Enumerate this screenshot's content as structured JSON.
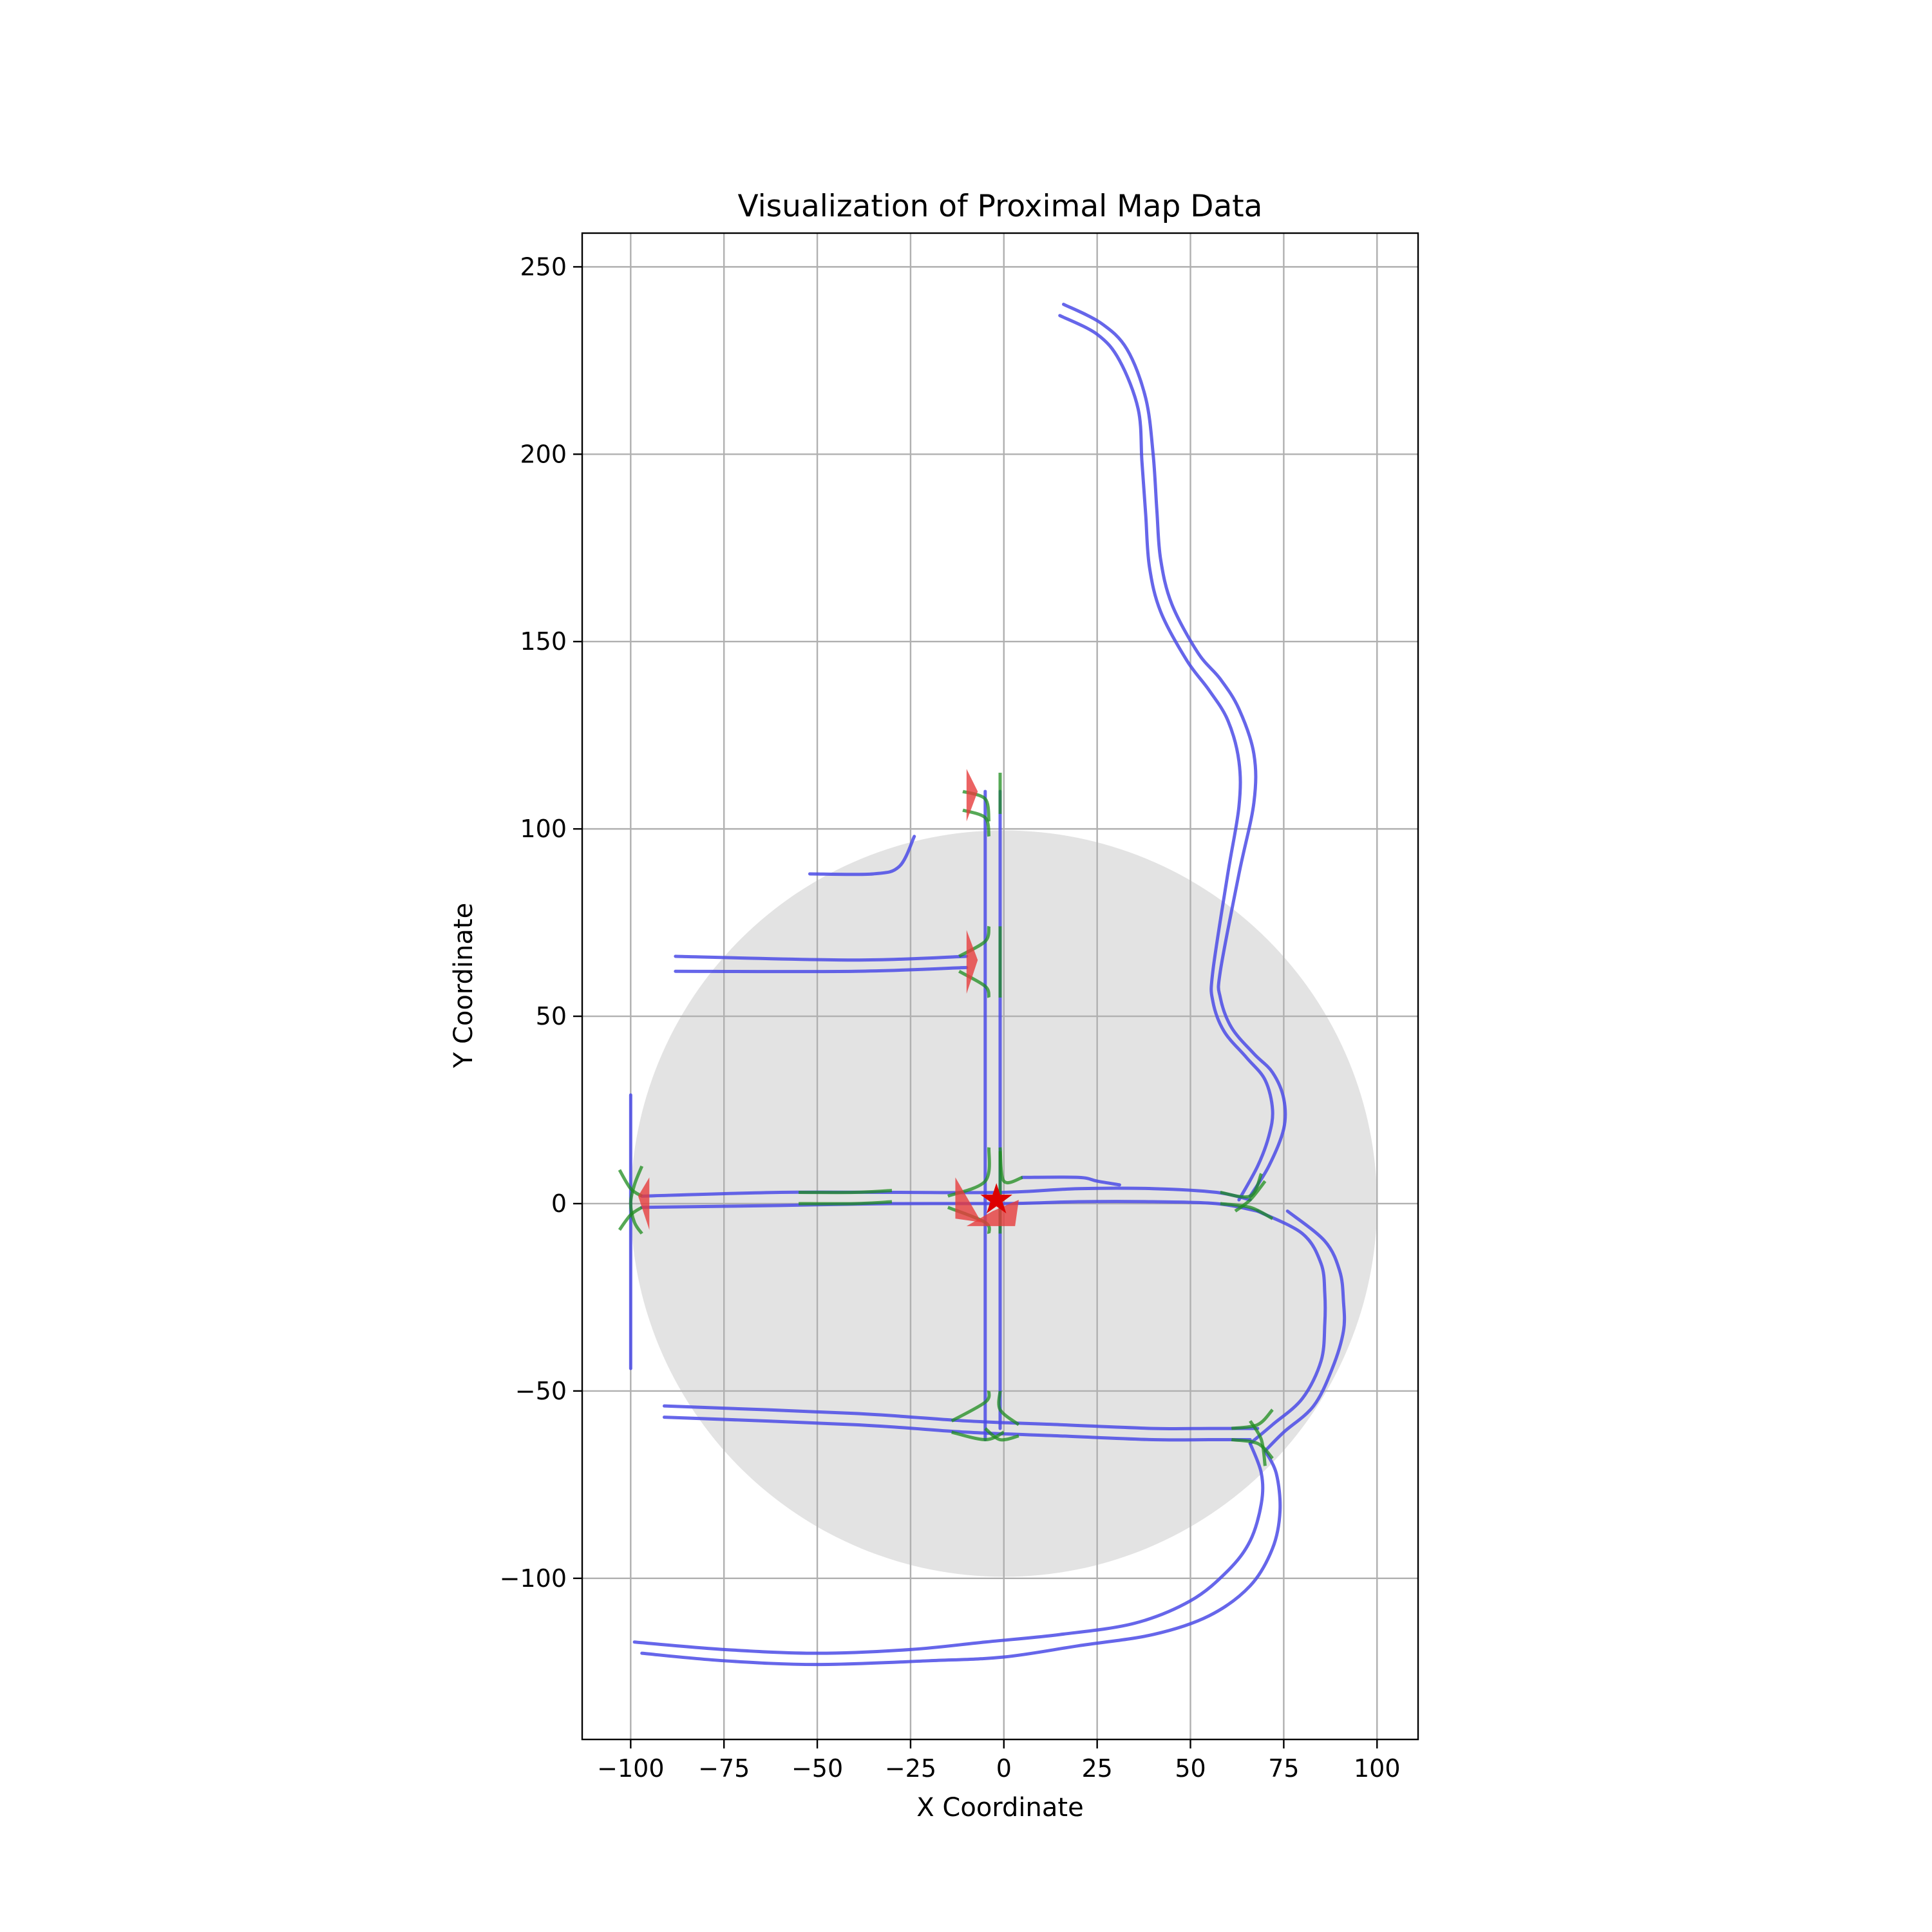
{
  "chart_data": {
    "type": "line",
    "title": "Visualization of Proximal Map Data",
    "xlabel": "X Coordinate",
    "ylabel": "Y Coordinate",
    "xlim": [
      -113,
      111
    ],
    "ylim": [
      -143,
      259
    ],
    "xticks": [
      -100,
      -75,
      -50,
      -25,
      0,
      25,
      50,
      75,
      100
    ],
    "yticks": [
      -100,
      -50,
      0,
      50,
      100,
      150,
      200,
      250
    ],
    "xtick_labels": [
      "−100",
      "−75",
      "−50",
      "−25",
      "0",
      "25",
      "50",
      "75",
      "100"
    ],
    "ytick_labels": [
      "−100",
      "−50",
      "0",
      "50",
      "100",
      "150",
      "200",
      "250"
    ],
    "grid": true,
    "colors": {
      "lane": "#4b4be6",
      "connector": "#1e8c1e",
      "marker": "#e63c3c",
      "circle": "#e3e3e3",
      "ego": "#dd0000"
    },
    "proximity_circle": {
      "center": [
        0,
        0
      ],
      "radius": 100
    },
    "ego_marker": {
      "x": -2,
      "y": 1
    },
    "lanes": [
      {
        "name": "north-curve-outer",
        "points": [
          [
            16,
            240
          ],
          [
            26,
            235
          ],
          [
            33,
            228
          ],
          [
            38,
            215
          ],
          [
            40,
            200
          ],
          [
            41,
            185
          ],
          [
            42,
            172
          ],
          [
            45,
            160
          ],
          [
            52,
            147
          ],
          [
            58,
            140
          ],
          [
            63,
            132
          ],
          [
            67,
            120
          ],
          [
            67,
            107
          ],
          [
            63,
            88
          ],
          [
            58,
            62
          ],
          [
            58,
            55
          ],
          [
            61,
            47
          ],
          [
            67,
            40
          ],
          [
            72,
            35
          ],
          [
            75,
            28
          ],
          [
            75,
            20
          ],
          [
            71,
            10
          ],
          [
            66,
            2
          ]
        ]
      },
      {
        "name": "north-curve-inner",
        "points": [
          [
            15,
            237
          ],
          [
            25,
            232
          ],
          [
            31,
            225
          ],
          [
            36,
            212
          ],
          [
            37,
            198
          ],
          [
            38,
            184
          ],
          [
            39,
            170
          ],
          [
            42,
            158
          ],
          [
            49,
            145
          ],
          [
            55,
            137
          ],
          [
            60,
            129
          ],
          [
            63,
            118
          ],
          [
            63,
            106
          ],
          [
            60,
            88
          ],
          [
            56,
            62
          ],
          [
            56,
            54
          ],
          [
            59,
            46
          ],
          [
            65,
            39
          ],
          [
            70,
            33
          ],
          [
            72,
            25
          ],
          [
            71,
            18
          ],
          [
            68,
            10
          ],
          [
            63,
            1
          ]
        ]
      },
      {
        "name": "east-loop-outer",
        "points": [
          [
            68,
            -2
          ],
          [
            80,
            -8
          ],
          [
            85,
            -16
          ],
          [
            86,
            -24
          ],
          [
            86,
            -32
          ],
          [
            85,
            -42
          ],
          [
            80,
            -52
          ],
          [
            72,
            -59
          ],
          [
            66,
            -64
          ]
        ]
      },
      {
        "name": "east-loop-inner",
        "points": [
          [
            76,
            -2
          ],
          [
            86,
            -10
          ],
          [
            90,
            -18
          ],
          [
            91,
            -26
          ],
          [
            91,
            -34
          ],
          [
            88,
            -44
          ],
          [
            83,
            -54
          ],
          [
            75,
            -61
          ],
          [
            70,
            -66
          ]
        ]
      },
      {
        "name": "south-road-upper",
        "points": [
          [
            70,
            -66
          ],
          [
            73,
            -72
          ],
          [
            74,
            -82
          ],
          [
            72,
            -92
          ],
          [
            66,
            -102
          ],
          [
            55,
            -110
          ],
          [
            40,
            -115
          ],
          [
            20,
            -118
          ],
          [
            0,
            -121
          ],
          [
            -20,
            -122
          ],
          [
            -50,
            -123
          ],
          [
            -75,
            -122
          ],
          [
            -97,
            -120
          ]
        ]
      },
      {
        "name": "south-road-lower",
        "points": [
          [
            66,
            -64
          ],
          [
            69,
            -72
          ],
          [
            69,
            -80
          ],
          [
            66,
            -90
          ],
          [
            60,
            -98
          ],
          [
            50,
            -106
          ],
          [
            35,
            -112
          ],
          [
            15,
            -115
          ],
          [
            -5,
            -117
          ],
          [
            -25,
            -119
          ],
          [
            -50,
            -120
          ],
          [
            -75,
            -119
          ],
          [
            -99,
            -117
          ]
        ]
      },
      {
        "name": "main-east-west-upper",
        "points": [
          [
            -97,
            2
          ],
          [
            -60,
            3
          ],
          [
            -30,
            3
          ],
          [
            0,
            3
          ],
          [
            20,
            4
          ],
          [
            40,
            4
          ],
          [
            57,
            3
          ],
          [
            66,
            1
          ]
        ]
      },
      {
        "name": "main-east-west-lower",
        "points": [
          [
            -97,
            -1
          ],
          [
            -60,
            -0.5
          ],
          [
            -30,
            0
          ],
          [
            0,
            0
          ],
          [
            20,
            0.5
          ],
          [
            40,
            0.5
          ],
          [
            57,
            0
          ],
          [
            68,
            -2
          ]
        ]
      },
      {
        "name": "vertical-road-left",
        "points": [
          [
            -5,
            110
          ],
          [
            -5,
            90
          ],
          [
            -5,
            66
          ],
          [
            -5,
            40
          ],
          [
            -5,
            10
          ],
          [
            -5,
            -20
          ],
          [
            -5,
            -50
          ],
          [
            -5,
            -63
          ]
        ]
      },
      {
        "name": "vertical-road-right",
        "points": [
          [
            -1,
            110
          ],
          [
            -1,
            90
          ],
          [
            -1,
            66
          ],
          [
            -1,
            40
          ],
          [
            -1,
            10
          ],
          [
            -1,
            -20
          ],
          [
            -1,
            -50
          ],
          [
            -1,
            -60
          ]
        ]
      },
      {
        "name": "west-branch-upper",
        "points": [
          [
            -88,
            66
          ],
          [
            -40,
            65
          ],
          [
            -10,
            66
          ]
        ]
      },
      {
        "name": "west-branch-lower",
        "points": [
          [
            -88,
            62
          ],
          [
            -40,
            62
          ],
          [
            -10,
            63
          ]
        ]
      },
      {
        "name": "short-stub-north",
        "points": [
          [
            -52,
            88
          ],
          [
            -35,
            88
          ],
          [
            -28,
            90
          ],
          [
            -24,
            98
          ]
        ]
      },
      {
        "name": "east-short-stub",
        "points": [
          [
            5,
            7
          ],
          [
            20,
            7
          ],
          [
            25,
            6
          ],
          [
            31,
            5
          ]
        ]
      },
      {
        "name": "far-west-vertical",
        "points": [
          [
            -100,
            29
          ],
          [
            -100,
            0
          ],
          [
            -100,
            -44
          ]
        ]
      },
      {
        "name": "south-branch-upper",
        "points": [
          [
            -91,
            -54
          ],
          [
            -40,
            -56
          ],
          [
            -10,
            -58
          ],
          [
            15,
            -59
          ],
          [
            40,
            -60
          ],
          [
            55,
            -60
          ],
          [
            68,
            -60
          ]
        ]
      },
      {
        "name": "south-branch-lower",
        "points": [
          [
            -91,
            -57
          ],
          [
            -40,
            -59
          ],
          [
            -10,
            -61
          ],
          [
            15,
            -62
          ],
          [
            40,
            -63
          ],
          [
            55,
            -63
          ],
          [
            66,
            -63
          ]
        ]
      }
    ],
    "connectors": [
      {
        "name": "conn-north-1",
        "points": [
          [
            -11,
            110
          ],
          [
            -5,
            108
          ],
          [
            -4,
            102
          ]
        ]
      },
      {
        "name": "conn-north-2",
        "points": [
          [
            -11,
            105
          ],
          [
            -5,
            103
          ],
          [
            -4,
            98
          ]
        ]
      },
      {
        "name": "conn-north-3",
        "points": [
          [
            -1,
            115
          ],
          [
            -1,
            104
          ]
        ]
      },
      {
        "name": "conn-west-junction-a",
        "points": [
          [
            -12,
            66
          ],
          [
            -5,
            70
          ],
          [
            -4,
            74
          ]
        ]
      },
      {
        "name": "conn-west-junction-b",
        "points": [
          [
            -12,
            62
          ],
          [
            -5,
            58
          ],
          [
            -4,
            55
          ]
        ]
      },
      {
        "name": "conn-west-junction-c",
        "points": [
          [
            -1,
            74
          ],
          [
            -1,
            55
          ]
        ]
      },
      {
        "name": "conn-center-a",
        "points": [
          [
            -15,
            2
          ],
          [
            -5,
            6
          ],
          [
            -4,
            15
          ]
        ]
      },
      {
        "name": "conn-center-b",
        "points": [
          [
            -15,
            -1
          ],
          [
            -5,
            -5
          ],
          [
            -4,
            -8
          ]
        ]
      },
      {
        "name": "conn-center-c",
        "points": [
          [
            5,
            7
          ],
          [
            0,
            6
          ],
          [
            -1,
            15
          ]
        ]
      },
      {
        "name": "conn-center-d",
        "points": [
          [
            -1,
            14
          ],
          [
            -1,
            -8
          ]
        ]
      },
      {
        "name": "conn-far-west-a",
        "points": [
          [
            -103,
            9
          ],
          [
            -100,
            4
          ],
          [
            -97,
            2
          ]
        ]
      },
      {
        "name": "conn-far-west-b",
        "points": [
          [
            -103,
            -7
          ],
          [
            -100,
            -3
          ],
          [
            -97,
            -1
          ]
        ]
      },
      {
        "name": "conn-far-west-c",
        "points": [
          [
            -97,
            10
          ],
          [
            -99,
            5
          ],
          [
            -100,
            0
          ],
          [
            -99,
            -5
          ],
          [
            -97,
            -8
          ]
        ]
      },
      {
        "name": "conn-main-west",
        "points": [
          [
            -55,
            3
          ],
          [
            -40,
            3
          ],
          [
            -30,
            3.5
          ]
        ]
      },
      {
        "name": "conn-main-west-2",
        "points": [
          [
            -55,
            0
          ],
          [
            -40,
            0
          ],
          [
            -30,
            0.5
          ]
        ]
      },
      {
        "name": "conn-east-junction-a",
        "points": [
          [
            58,
            3
          ],
          [
            66,
            2
          ],
          [
            69,
            8
          ]
        ]
      },
      {
        "name": "conn-east-junction-b",
        "points": [
          [
            58,
            0
          ],
          [
            66,
            -1
          ],
          [
            72,
            -4
          ]
        ]
      },
      {
        "name": "conn-east-junction-c",
        "points": [
          [
            62,
            -2
          ],
          [
            66,
            1
          ],
          [
            70,
            6
          ]
        ]
      },
      {
        "name": "conn-south-junction-a",
        "points": [
          [
            -14,
            -58
          ],
          [
            -5,
            -53
          ],
          [
            -4,
            -50
          ]
        ]
      },
      {
        "name": "conn-south-junction-b",
        "points": [
          [
            -14,
            -61
          ],
          [
            -5,
            -63
          ],
          [
            0,
            -61
          ]
        ]
      },
      {
        "name": "conn-south-junction-c",
        "points": [
          [
            4,
            -59
          ],
          [
            -1,
            -55
          ],
          [
            -1,
            -50
          ]
        ]
      },
      {
        "name": "conn-south-junction-d",
        "points": [
          [
            4,
            -62
          ],
          [
            -1,
            -63
          ],
          [
            -5,
            -60
          ]
        ]
      },
      {
        "name": "conn-south-east-a",
        "points": [
          [
            61,
            -60
          ],
          [
            68,
            -59
          ],
          [
            72,
            -55
          ]
        ]
      },
      {
        "name": "conn-south-east-b",
        "points": [
          [
            61,
            -63
          ],
          [
            68,
            -64
          ],
          [
            72,
            -68
          ]
        ]
      },
      {
        "name": "conn-south-east-c",
        "points": [
          [
            66,
            -58
          ],
          [
            69,
            -63
          ],
          [
            70,
            -70
          ]
        ]
      }
    ],
    "markers": [
      {
        "name": "stop-marker-north",
        "points": [
          [
            -10,
            116
          ],
          [
            -7,
            110
          ],
          [
            -10,
            102
          ]
        ]
      },
      {
        "name": "stop-marker-west-junction",
        "points": [
          [
            -10,
            73
          ],
          [
            -7,
            65
          ],
          [
            -10,
            56
          ]
        ]
      },
      {
        "name": "stop-marker-far-west",
        "points": [
          [
            -95,
            7
          ],
          [
            -98,
            2
          ],
          [
            -95,
            -7
          ]
        ]
      },
      {
        "name": "stop-marker-center-a",
        "points": [
          [
            -13,
            7
          ],
          [
            -13,
            -4
          ],
          [
            -6,
            -5
          ]
        ]
      },
      {
        "name": "stop-marker-center-b",
        "points": [
          [
            -10,
            -6
          ],
          [
            3,
            -6
          ],
          [
            4,
            1
          ],
          [
            -3,
            -2
          ]
        ]
      }
    ]
  }
}
